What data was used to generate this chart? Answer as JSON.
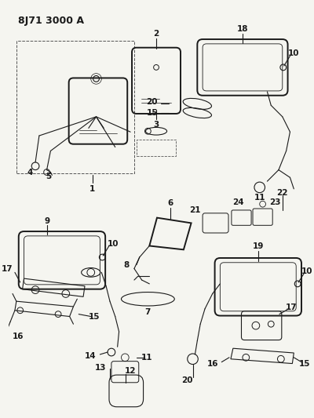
{
  "title": "8J71 3000 A",
  "bg_color": "#f5f5f0",
  "fig_width": 4.0,
  "fig_height": 5.33,
  "dpi": 100
}
